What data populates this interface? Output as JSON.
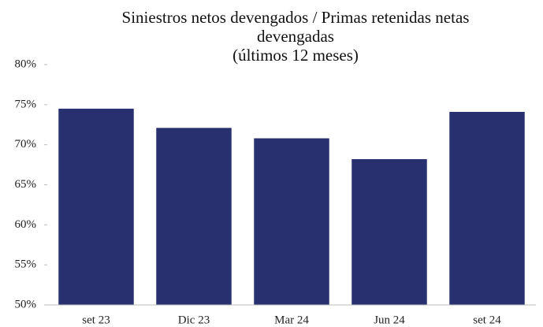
{
  "chart_data": {
    "type": "bar",
    "title": "Siniestros netos devengados / Primas retenidas netas devengadas",
    "subtitle": "(últimos 12 meses)",
    "categories": [
      "set 23",
      "Dic 23",
      "Mar 24",
      "Jun 24",
      "set 24"
    ],
    "values": [
      74.5,
      72.1,
      70.8,
      68.2,
      74.1
    ],
    "color": "#283070",
    "ylim": [
      50,
      80
    ],
    "yticks": [
      {
        "value": 50,
        "label": "50%"
      },
      {
        "value": 55,
        "label": "55%"
      },
      {
        "value": 60,
        "label": "60%"
      },
      {
        "value": 65,
        "label": "65%"
      },
      {
        "value": 70,
        "label": "70%"
      },
      {
        "value": 75,
        "label": "75%"
      },
      {
        "value": 80,
        "label": "80%"
      }
    ],
    "grid": false
  }
}
